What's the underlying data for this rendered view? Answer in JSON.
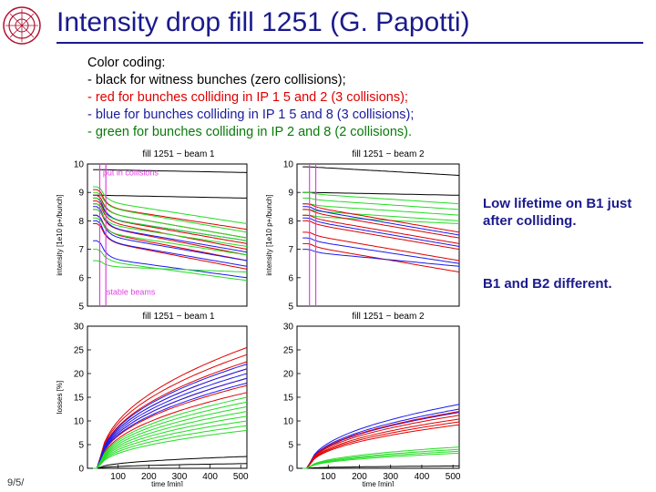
{
  "slide": {
    "title": "Intensity drop fill 1251 (G. Papotti)",
    "footer": "9/5/",
    "color_coding": {
      "heading": "Color coding:",
      "black": "- black for witness bunches (zero collisions);",
      "red": "- red for bunches colliding in IP 1 5 and 2 (3 collisions);",
      "blue": "- blue for bunches colliding in IP 1 5 and 8 (3 collisions);",
      "green": "- green for bunches colliding in IP 2 and 8 (2 collisions)."
    },
    "notes": [
      "Low lifetime on B1 just after colliding.",
      "B1 and B2 different."
    ]
  },
  "colors": {
    "title": "#1a1a8c",
    "black": "#000000",
    "red": "#e00000",
    "blue": "#1a1aee",
    "green": "#22dd22",
    "magenta": "#e040e0"
  },
  "chart_data": [
    {
      "type": "line",
      "title": "fill 1251 − beam 1",
      "xlabel": "",
      "ylabel": "intensity [1e10 p+/bunch]",
      "ylim": [
        5,
        10
      ],
      "xlim": [
        0,
        520
      ],
      "yticks": [
        5,
        6,
        7,
        8,
        9,
        10
      ],
      "xticks": [],
      "annotations": [
        "put in collisions",
        "stable beams"
      ],
      "markers_x": [
        40,
        60
      ],
      "series": [
        {
          "group": "black",
          "start": 9.8,
          "end": 9.7,
          "drop": 0.0
        },
        {
          "group": "black",
          "start": 8.9,
          "end": 8.8,
          "drop": 0.0
        },
        {
          "group": "red",
          "start": 9.1,
          "end": 7.7,
          "drop": 0.6
        },
        {
          "group": "red",
          "start": 8.9,
          "end": 7.4,
          "drop": 0.6
        },
        {
          "group": "red",
          "start": 8.6,
          "end": 7.0,
          "drop": 0.6
        },
        {
          "group": "red",
          "start": 8.4,
          "end": 6.8,
          "drop": 0.6
        },
        {
          "group": "red",
          "start": 8.2,
          "end": 6.6,
          "drop": 0.6
        },
        {
          "group": "red",
          "start": 7.9,
          "end": 6.3,
          "drop": 0.6
        },
        {
          "group": "red",
          "start": 8.7,
          "end": 7.2,
          "drop": 0.6
        },
        {
          "group": "blue",
          "start": 8.8,
          "end": 7.3,
          "drop": 0.7
        },
        {
          "group": "blue",
          "start": 8.5,
          "end": 6.9,
          "drop": 0.7
        },
        {
          "group": "blue",
          "start": 8.2,
          "end": 6.6,
          "drop": 0.7
        },
        {
          "group": "blue",
          "start": 8.0,
          "end": 6.4,
          "drop": 0.7
        },
        {
          "group": "blue",
          "start": 7.3,
          "end": 6.0,
          "drop": 0.6
        },
        {
          "group": "green",
          "start": 9.2,
          "end": 7.9,
          "drop": 0.5
        },
        {
          "group": "green",
          "start": 9.0,
          "end": 7.6,
          "drop": 0.5
        },
        {
          "group": "green",
          "start": 8.8,
          "end": 7.4,
          "drop": 0.5
        },
        {
          "group": "green",
          "start": 8.6,
          "end": 7.3,
          "drop": 0.5
        },
        {
          "group": "green",
          "start": 8.4,
          "end": 7.1,
          "drop": 0.5
        },
        {
          "group": "green",
          "start": 8.1,
          "end": 6.8,
          "drop": 0.5
        },
        {
          "group": "green",
          "start": 7.0,
          "end": 5.9,
          "drop": 0.4
        },
        {
          "group": "green",
          "start": 6.6,
          "end": 6.2,
          "drop": 0.2
        }
      ]
    },
    {
      "type": "line",
      "title": "fill 1251 − beam 2",
      "xlabel": "",
      "ylabel": "intensity [1e10 p+/bunch]",
      "ylim": [
        5,
        10
      ],
      "xlim": [
        0,
        520
      ],
      "yticks": [
        5,
        6,
        7,
        8,
        9,
        10
      ],
      "xticks": [],
      "annotations": [],
      "markers_x": [
        40,
        60
      ],
      "series": [
        {
          "group": "black",
          "start": 9.9,
          "end": 9.6,
          "drop": 0.0
        },
        {
          "group": "black",
          "start": 9.0,
          "end": 8.9,
          "drop": 0.0
        },
        {
          "group": "green",
          "start": 9.0,
          "end": 8.6,
          "drop": 0.05
        },
        {
          "group": "green",
          "start": 8.8,
          "end": 8.4,
          "drop": 0.05
        },
        {
          "group": "green",
          "start": 8.6,
          "end": 8.2,
          "drop": 0.05
        },
        {
          "group": "green",
          "start": 8.4,
          "end": 8.0,
          "drop": 0.05
        },
        {
          "group": "green",
          "start": 8.2,
          "end": 7.9,
          "drop": 0.05
        },
        {
          "group": "red",
          "start": 8.6,
          "end": 7.6,
          "drop": 0.1
        },
        {
          "group": "red",
          "start": 8.4,
          "end": 7.4,
          "drop": 0.1
        },
        {
          "group": "red",
          "start": 8.2,
          "end": 7.2,
          "drop": 0.1
        },
        {
          "group": "red",
          "start": 8.0,
          "end": 7.0,
          "drop": 0.1
        },
        {
          "group": "red",
          "start": 7.6,
          "end": 6.6,
          "drop": 0.1
        },
        {
          "group": "red",
          "start": 7.2,
          "end": 6.2,
          "drop": 0.1
        },
        {
          "group": "blue",
          "start": 8.5,
          "end": 7.5,
          "drop": 0.1
        },
        {
          "group": "blue",
          "start": 8.1,
          "end": 7.1,
          "drop": 0.1
        },
        {
          "group": "blue",
          "start": 7.4,
          "end": 6.5,
          "drop": 0.1
        },
        {
          "group": "blue",
          "start": 7.0,
          "end": 6.4,
          "drop": 0.1
        }
      ]
    },
    {
      "type": "line",
      "title": "fill 1251 − beam 1",
      "xlabel": "time [min]",
      "ylabel": "losses [%]",
      "ylim": [
        0,
        30
      ],
      "xlim": [
        0,
        520
      ],
      "yticks": [
        0,
        5,
        10,
        15,
        20,
        25,
        30
      ],
      "xticks": [
        100,
        200,
        300,
        400,
        500
      ],
      "annotations": [],
      "markers_x": [],
      "series": [
        {
          "group": "black",
          "start": 0,
          "end": 2.5,
          "drop": 0
        },
        {
          "group": "black",
          "start": 0,
          "end": 1.0,
          "drop": 0
        },
        {
          "group": "red",
          "start": 0,
          "end": 25.5,
          "drop": 0
        },
        {
          "group": "red",
          "start": 0,
          "end": 24.0,
          "drop": 0
        },
        {
          "group": "red",
          "start": 0,
          "end": 22.5,
          "drop": 0
        },
        {
          "group": "red",
          "start": 0,
          "end": 21.0,
          "drop": 0
        },
        {
          "group": "red",
          "start": 0,
          "end": 19.0,
          "drop": 0
        },
        {
          "group": "red",
          "start": 0,
          "end": 17.5,
          "drop": 0
        },
        {
          "group": "red",
          "start": 0,
          "end": 16.0,
          "drop": 0
        },
        {
          "group": "blue",
          "start": 0,
          "end": 22.0,
          "drop": 0
        },
        {
          "group": "blue",
          "start": 0,
          "end": 21.0,
          "drop": 0
        },
        {
          "group": "blue",
          "start": 0,
          "end": 20.0,
          "drop": 0
        },
        {
          "group": "blue",
          "start": 0,
          "end": 19.0,
          "drop": 0
        },
        {
          "group": "blue",
          "start": 0,
          "end": 18.0,
          "drop": 0
        },
        {
          "group": "green",
          "start": 0,
          "end": 15.0,
          "drop": 0
        },
        {
          "group": "green",
          "start": 0,
          "end": 14.0,
          "drop": 0
        },
        {
          "group": "green",
          "start": 0,
          "end": 13.0,
          "drop": 0
        },
        {
          "group": "green",
          "start": 0,
          "end": 12.0,
          "drop": 0
        },
        {
          "group": "green",
          "start": 0,
          "end": 11.0,
          "drop": 0
        },
        {
          "group": "green",
          "start": 0,
          "end": 10.0,
          "drop": 0
        },
        {
          "group": "green",
          "start": 0,
          "end": 9.0,
          "drop": 0
        },
        {
          "group": "green",
          "start": 0,
          "end": 8.0,
          "drop": 0
        }
      ]
    },
    {
      "type": "line",
      "title": "fill 1251 − beam 2",
      "xlabel": "time [min]",
      "ylabel": "",
      "ylim": [
        0,
        30
      ],
      "xlim": [
        0,
        520
      ],
      "yticks": [
        0,
        5,
        10,
        15,
        20,
        25,
        30
      ],
      "xticks": [
        100,
        200,
        300,
        400,
        500
      ],
      "annotations": [],
      "markers_x": [],
      "series": [
        {
          "group": "black",
          "start": 0,
          "end": 0.5,
          "drop": 0
        },
        {
          "group": "blue",
          "start": 0,
          "end": 13.5,
          "drop": 0
        },
        {
          "group": "blue",
          "start": 0,
          "end": 12.5,
          "drop": 0
        },
        {
          "group": "blue",
          "start": 0,
          "end": 11.8,
          "drop": 0
        },
        {
          "group": "red",
          "start": 0,
          "end": 12.0,
          "drop": 0
        },
        {
          "group": "red",
          "start": 0,
          "end": 11.2,
          "drop": 0
        },
        {
          "group": "red",
          "start": 0,
          "end": 10.4,
          "drop": 0
        },
        {
          "group": "red",
          "start": 0,
          "end": 9.8,
          "drop": 0
        },
        {
          "group": "red",
          "start": 0,
          "end": 9.2,
          "drop": 0
        },
        {
          "group": "green",
          "start": 0,
          "end": 4.5,
          "drop": 0
        },
        {
          "group": "green",
          "start": 0,
          "end": 4.0,
          "drop": 0
        },
        {
          "group": "green",
          "start": 0,
          "end": 3.6,
          "drop": 0
        },
        {
          "group": "green",
          "start": 0,
          "end": 3.2,
          "drop": 0
        }
      ]
    }
  ]
}
